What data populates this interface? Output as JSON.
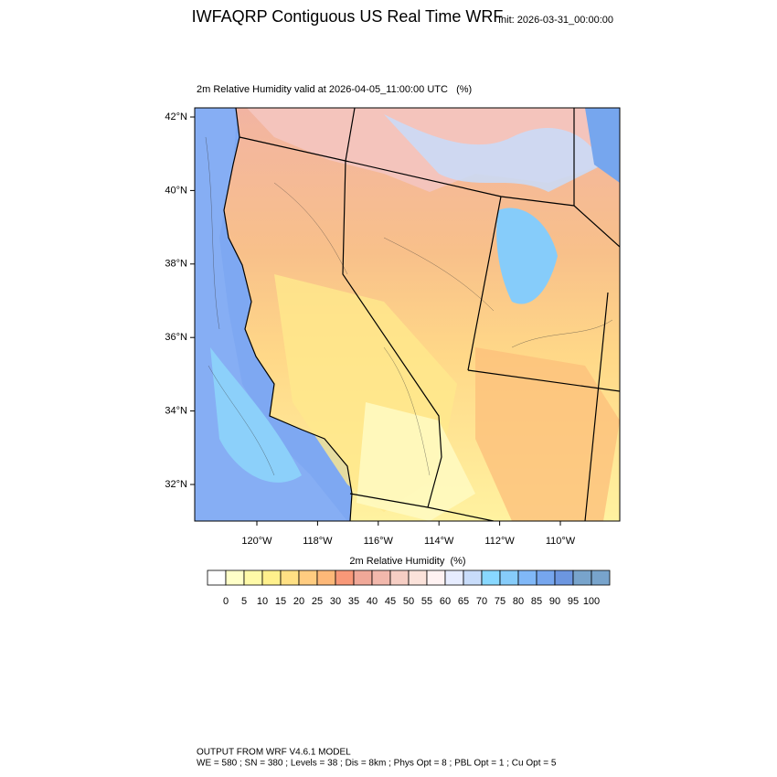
{
  "header": {
    "title": "IWFAQRP Contiguous US Real Time WRF",
    "init": "Init: 2026-03-31_00:00:00"
  },
  "map": {
    "subtitle": "2m Relative Humidity valid at 2026-04-05_11:00:00 UTC   (%)",
    "lat_ticks": [
      {
        "value": 42,
        "label": "42°N"
      },
      {
        "value": 40,
        "label": "40°N"
      },
      {
        "value": 38,
        "label": "38°N"
      },
      {
        "value": 36,
        "label": "36°N"
      },
      {
        "value": 34,
        "label": "34°N"
      },
      {
        "value": 32,
        "label": "32°N"
      }
    ],
    "lon_ticks": [
      {
        "value": -120,
        "label": "120°W"
      },
      {
        "value": -118,
        "label": "118°W"
      },
      {
        "value": -116,
        "label": "116°W"
      },
      {
        "value": -114,
        "label": "114°W"
      },
      {
        "value": -112,
        "label": "112°W"
      },
      {
        "value": -110,
        "label": "110°W"
      }
    ]
  },
  "colorbar": {
    "title": "2m Relative Humidity  (%)",
    "levels": [
      0,
      5,
      10,
      15,
      20,
      25,
      30,
      35,
      40,
      45,
      50,
      55,
      60,
      65,
      70,
      75,
      80,
      85,
      90,
      95,
      100
    ],
    "colors": [
      "#ffffff",
      "#ffffc8",
      "#fffaa8",
      "#fff08c",
      "#ffe084",
      "#ffcc80",
      "#fdb878",
      "#f89878",
      "#f0a898",
      "#f2b8ac",
      "#f6cec4",
      "#fbe2da",
      "#fff2f2",
      "#e6ecff",
      "#c8dcfa",
      "#88d8ff",
      "#86ccfa",
      "#80b8f8",
      "#76a6ee",
      "#6c96e0",
      "#78a4cc"
    ]
  },
  "footer": {
    "line1": "OUTPUT FROM WRF V4.6.1 MODEL",
    "line2": "WE = 580 ; SN = 380 ; Levels = 38 ; Dis = 8km ; Phys Opt = 8 ; PBL Opt = 1 ; Cu Opt = 5"
  }
}
